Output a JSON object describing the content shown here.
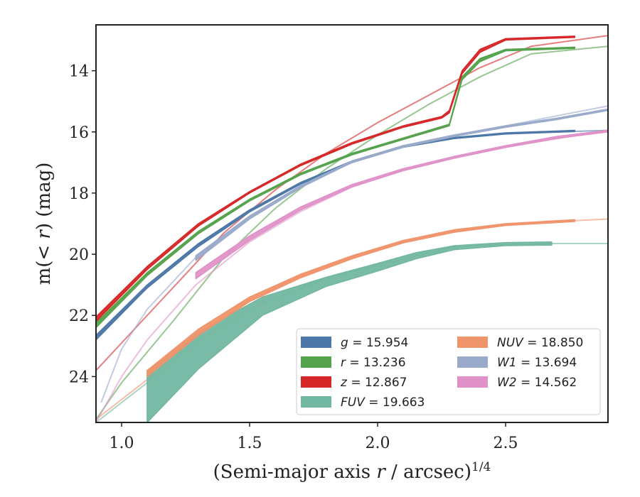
{
  "chart_data": {
    "type": "line",
    "xlabel": "(Semi-major axis r / arcsec)^1/4",
    "ylabel": "m(< r) (mag)",
    "xlim": [
      0.9,
      2.9
    ],
    "ylim": [
      25.5,
      12.5
    ],
    "y_inverted": true,
    "x_ticks": [
      1.0,
      1.5,
      2.0,
      2.5
    ],
    "x_tick_labels": [
      "1.0",
      "1.5",
      "2.0",
      "2.5"
    ],
    "y_ticks": [
      14,
      16,
      18,
      20,
      22,
      24
    ],
    "y_tick_labels": [
      "14",
      "16",
      "18",
      "20",
      "22",
      "24"
    ],
    "legend_position": "lower-right",
    "series": [
      {
        "name": "g = 15.954",
        "color": "#4c78a8",
        "band": [
          [
            0.9,
            22.65,
            22.8
          ],
          [
            1.1,
            21.0,
            21.1
          ],
          [
            1.3,
            19.65,
            19.75
          ],
          [
            1.5,
            18.55,
            18.62
          ],
          [
            1.7,
            17.65,
            17.7
          ],
          [
            1.9,
            16.95,
            17.0
          ],
          [
            2.1,
            16.45,
            16.5
          ],
          [
            2.3,
            16.18,
            16.22
          ],
          [
            2.5,
            16.03,
            16.07
          ],
          [
            2.77,
            15.95,
            15.99
          ]
        ],
        "tail": [
          [
            0.9,
            22.7
          ],
          [
            1.1,
            21.1
          ],
          [
            1.3,
            19.7
          ],
          [
            1.5,
            18.6
          ],
          [
            1.7,
            17.7
          ],
          [
            1.9,
            17.0
          ],
          [
            2.1,
            16.5
          ],
          [
            2.3,
            16.2
          ],
          [
            2.5,
            16.05
          ],
          [
            2.9,
            15.95
          ]
        ]
      },
      {
        "name": "r = 13.236",
        "color": "#54a24b",
        "band": [
          [
            0.9,
            22.25,
            22.4
          ],
          [
            1.1,
            20.6,
            20.7
          ],
          [
            1.3,
            19.25,
            19.33
          ],
          [
            1.5,
            18.2,
            18.26
          ],
          [
            1.7,
            17.35,
            17.4
          ],
          [
            1.9,
            16.7,
            16.75
          ],
          [
            2.1,
            16.2,
            16.25
          ],
          [
            2.28,
            15.75,
            15.8
          ],
          [
            2.33,
            14.2,
            14.3
          ],
          [
            2.4,
            13.6,
            13.7
          ],
          [
            2.5,
            13.3,
            13.35
          ],
          [
            2.77,
            13.23,
            13.27
          ]
        ],
        "tail": [
          [
            0.9,
            25.4
          ],
          [
            1.0,
            24.2
          ],
          [
            1.2,
            22.2
          ],
          [
            1.4,
            20.1
          ],
          [
            1.6,
            18.5
          ],
          [
            1.8,
            17.2
          ],
          [
            2.0,
            16.1
          ],
          [
            2.2,
            15.1
          ],
          [
            2.4,
            14.2
          ],
          [
            2.6,
            13.45
          ],
          [
            2.9,
            13.2
          ]
        ]
      },
      {
        "name": "z = 12.867",
        "color": "#d62728",
        "band": [
          [
            0.9,
            22.05,
            22.2
          ],
          [
            1.1,
            20.4,
            20.5
          ],
          [
            1.3,
            19.0,
            19.08
          ],
          [
            1.5,
            17.95,
            18.0
          ],
          [
            1.7,
            17.05,
            17.1
          ],
          [
            1.9,
            16.35,
            16.4
          ],
          [
            2.1,
            15.8,
            15.85
          ],
          [
            2.25,
            15.5,
            15.55
          ],
          [
            2.28,
            15.3,
            15.38
          ],
          [
            2.33,
            14.0,
            14.1
          ],
          [
            2.4,
            13.3,
            13.4
          ],
          [
            2.5,
            12.95,
            13.0
          ],
          [
            2.77,
            12.87,
            12.91
          ]
        ],
        "tail": [
          [
            0.9,
            23.8
          ],
          [
            1.0,
            22.9
          ],
          [
            1.2,
            21.1
          ],
          [
            1.4,
            19.3
          ],
          [
            1.6,
            17.9
          ],
          [
            1.8,
            16.7
          ],
          [
            2.0,
            15.7
          ],
          [
            2.2,
            14.8
          ],
          [
            2.4,
            13.9
          ],
          [
            2.6,
            13.2
          ],
          [
            2.9,
            12.85
          ]
        ]
      },
      {
        "name": "FUV = 19.663",
        "color": "#72b7a1",
        "band": [
          [
            1.1,
            23.85,
            25.5
          ],
          [
            1.3,
            22.55,
            23.75
          ],
          [
            1.55,
            21.4,
            22.0
          ],
          [
            1.8,
            20.75,
            21.05
          ],
          [
            2.0,
            20.3,
            20.55
          ],
          [
            2.15,
            19.95,
            20.15
          ],
          [
            2.3,
            19.72,
            19.85
          ],
          [
            2.5,
            19.62,
            19.72
          ],
          [
            2.68,
            19.6,
            19.7
          ]
        ],
        "tail": [
          [
            0.9,
            25.5
          ],
          [
            1.1,
            24.2
          ],
          [
            1.3,
            22.8
          ],
          [
            1.55,
            21.6
          ],
          [
            1.8,
            20.8
          ],
          [
            2.0,
            20.35
          ],
          [
            2.3,
            19.75
          ],
          [
            2.68,
            19.65
          ],
          [
            2.9,
            19.65
          ]
        ]
      },
      {
        "name": "NUV = 18.850",
        "color": "#f0946c",
        "band": [
          [
            1.1,
            23.8,
            24.0
          ],
          [
            1.3,
            22.45,
            22.65
          ],
          [
            1.5,
            21.4,
            21.55
          ],
          [
            1.7,
            20.65,
            20.77
          ],
          [
            1.9,
            20.05,
            20.15
          ],
          [
            2.1,
            19.55,
            19.63
          ],
          [
            2.3,
            19.2,
            19.28
          ],
          [
            2.5,
            19.0,
            19.06
          ],
          [
            2.77,
            18.87,
            18.93
          ]
        ],
        "tail": [
          [
            0.9,
            25.4
          ],
          [
            1.1,
            24.1
          ],
          [
            1.3,
            22.6
          ],
          [
            1.5,
            21.5
          ],
          [
            1.7,
            20.7
          ],
          [
            1.9,
            20.1
          ],
          [
            2.1,
            19.6
          ],
          [
            2.3,
            19.25
          ],
          [
            2.5,
            19.03
          ],
          [
            2.77,
            18.9
          ],
          [
            2.9,
            18.85
          ]
        ]
      },
      {
        "name": "W1 = 13.694",
        "color": "#9aaacb",
        "band": [
          [
            1.29,
            20.05,
            20.2
          ],
          [
            1.5,
            18.75,
            18.85
          ],
          [
            1.7,
            17.75,
            17.82
          ],
          [
            1.9,
            16.95,
            17.0
          ],
          [
            2.1,
            16.45,
            16.5
          ],
          [
            2.3,
            16.1,
            16.15
          ],
          [
            2.5,
            15.8,
            15.85
          ],
          [
            2.7,
            15.55,
            15.6
          ],
          [
            2.9,
            15.25,
            15.3
          ]
        ],
        "tail": [
          [
            0.92,
            24.85
          ],
          [
            1.0,
            23.1
          ],
          [
            1.1,
            21.8
          ],
          [
            1.29,
            20.1
          ],
          [
            1.5,
            18.8
          ],
          [
            1.7,
            17.8
          ],
          [
            1.9,
            17.0
          ],
          [
            2.1,
            16.45
          ],
          [
            2.3,
            16.1
          ],
          [
            2.5,
            15.8
          ],
          [
            2.9,
            15.15
          ]
        ]
      },
      {
        "name": "W2 = 14.562",
        "color": "#e092c8",
        "band": [
          [
            1.29,
            20.6,
            20.8
          ],
          [
            1.5,
            19.4,
            19.55
          ],
          [
            1.7,
            18.45,
            18.55
          ],
          [
            1.9,
            17.72,
            17.8
          ],
          [
            2.1,
            17.2,
            17.27
          ],
          [
            2.3,
            16.8,
            16.86
          ],
          [
            2.5,
            16.45,
            16.51
          ],
          [
            2.7,
            16.15,
            16.21
          ],
          [
            2.9,
            15.95,
            16.0
          ]
        ],
        "tail": [
          [
            0.9,
            25.5
          ],
          [
            1.0,
            24.0
          ],
          [
            1.1,
            22.8
          ],
          [
            1.29,
            21.0
          ],
          [
            1.5,
            19.6
          ],
          [
            1.7,
            18.6
          ],
          [
            1.9,
            17.8
          ],
          [
            2.1,
            17.25
          ],
          [
            2.3,
            16.85
          ],
          [
            2.5,
            16.5
          ],
          [
            2.9,
            15.95
          ]
        ]
      }
    ]
  }
}
